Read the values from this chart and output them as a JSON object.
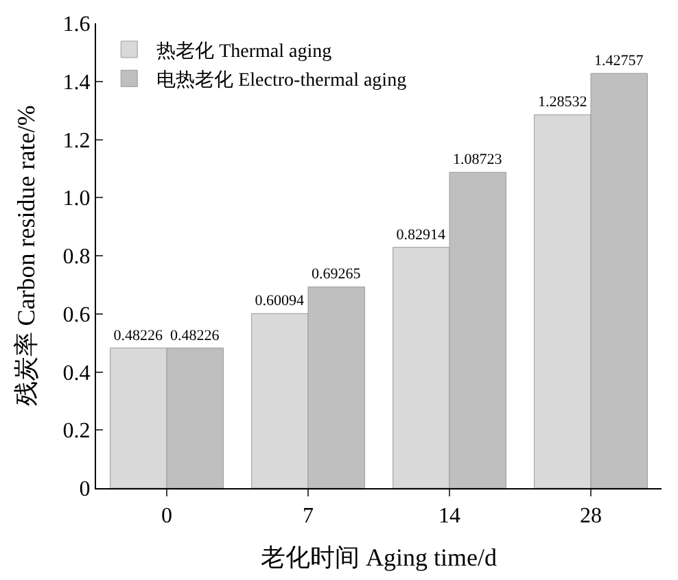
{
  "chart_data": {
    "type": "bar",
    "xlabel": "老化时间 Aging time/d",
    "ylabel": "残炭率 Carbon residue rate/%",
    "categories": [
      "0",
      "7",
      "14",
      "28"
    ],
    "series": [
      {
        "name": "热老化 Thermal aging",
        "color": "#d9d9d9",
        "values": [
          0.48226,
          0.60094,
          0.82914,
          1.28532
        ]
      },
      {
        "name": "电热老化 Electro-thermal aging",
        "color": "#bfbfbf",
        "values": [
          0.48226,
          0.69265,
          1.08723,
          1.42757
        ]
      }
    ],
    "ylim": [
      0,
      1.6
    ],
    "yticks": [
      0,
      0.2,
      0.4,
      0.6,
      0.8,
      {
        "value": 1,
        "label": "1.0"
      },
      1.2,
      1.4,
      1.6
    ],
    "data_labels": true,
    "legend": "top left"
  }
}
